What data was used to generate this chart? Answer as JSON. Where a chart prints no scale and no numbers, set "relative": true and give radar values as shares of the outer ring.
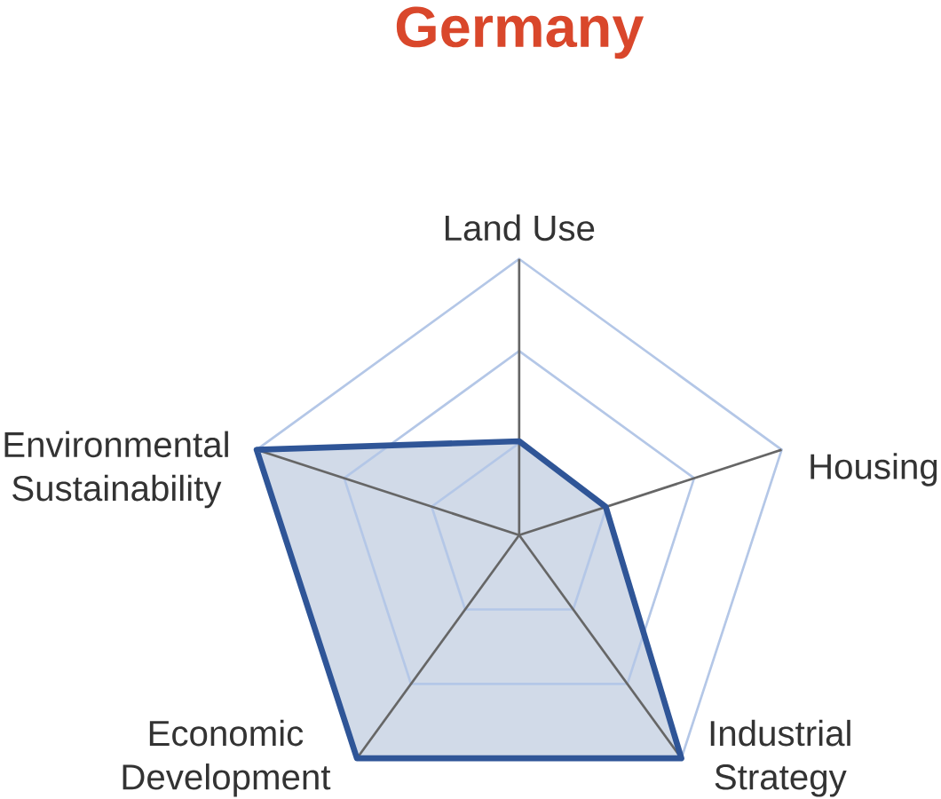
{
  "chart_data": {
    "type": "radar",
    "title": "Germany",
    "categories": [
      "Land Use",
      "Housing",
      "Industrial Strategy",
      "Economic Development",
      "Environmental Sustainability"
    ],
    "relative": true,
    "grid": true,
    "series": [
      {
        "color": "#2f5597",
        "values": [
          0.34,
          0.33,
          1,
          1,
          1
        ]
      }
    ]
  }
}
